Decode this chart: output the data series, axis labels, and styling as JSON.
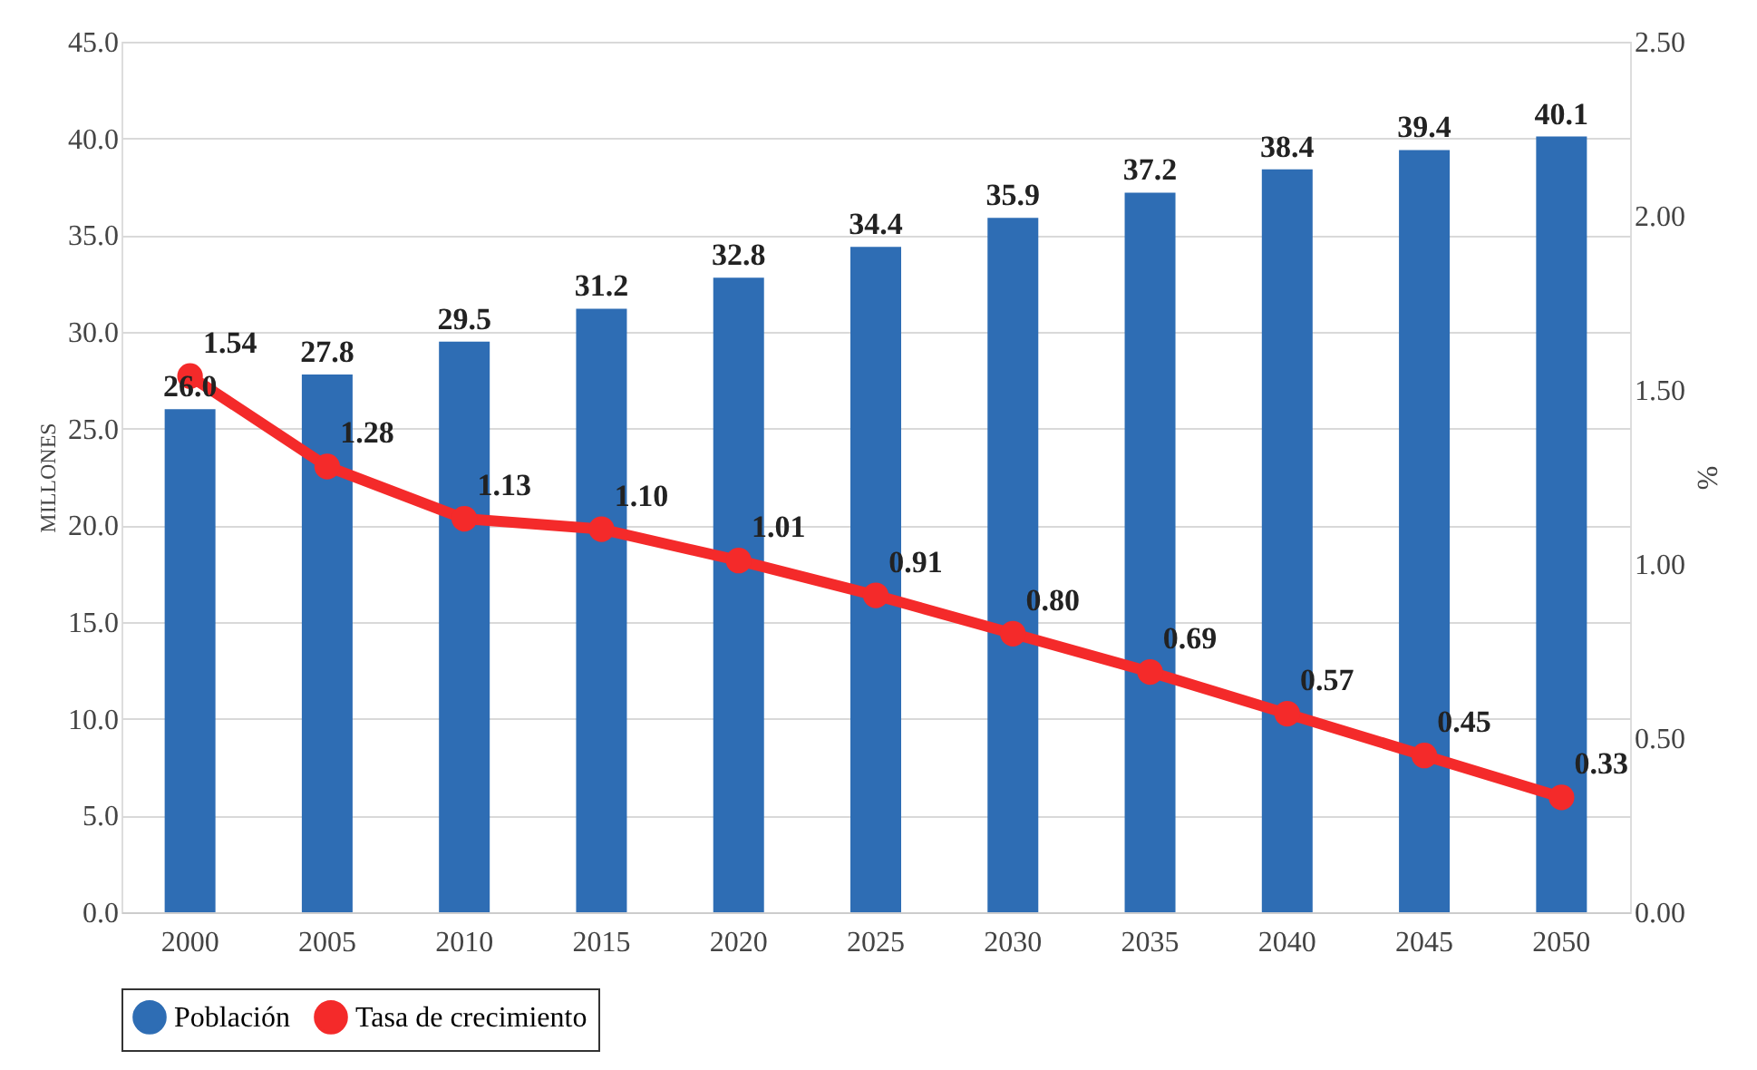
{
  "chart_data": {
    "type": "bar",
    "categories": [
      "2000",
      "2005",
      "2010",
      "2015",
      "2020",
      "2025",
      "2030",
      "2035",
      "2040",
      "2045",
      "2050"
    ],
    "ylabel": "MILLONES",
    "y2label": "%",
    "series": [
      {
        "name": "Población",
        "color": "#2e6db4",
        "values": [
          26.0,
          27.8,
          29.5,
          31.2,
          32.8,
          34.4,
          35.9,
          37.2,
          38.4,
          39.4,
          40.1
        ],
        "value_labels": [
          "26.0",
          "27.8",
          "29.5",
          "31.2",
          "32.8",
          "34.4",
          "35.9",
          "37.2",
          "38.4",
          "39.4",
          "40.1"
        ]
      },
      {
        "name": "Tasa de crecimiento",
        "type": "line",
        "axis": "y2",
        "color": "#f42a2a",
        "marker": "circle",
        "values": [
          1.54,
          1.28,
          1.13,
          1.1,
          1.01,
          0.91,
          0.8,
          0.69,
          0.57,
          0.45,
          0.33
        ],
        "value_labels": [
          "1.54",
          "1.28",
          "1.13",
          "1.10",
          "1.01",
          "0.91",
          "0.80",
          "0.69",
          "0.57",
          "0.45",
          "0.33"
        ]
      }
    ],
    "ylim": [
      0,
      45
    ],
    "yticks": [
      {
        "value": 0,
        "label": "0.0"
      },
      {
        "value": 5,
        "label": "5.0"
      },
      {
        "value": 10,
        "label": "10.0"
      },
      {
        "value": 15,
        "label": "15.0"
      },
      {
        "value": 20,
        "label": "20.0"
      },
      {
        "value": 25,
        "label": "25.0"
      },
      {
        "value": 30,
        "label": "30.0"
      },
      {
        "value": 35,
        "label": "35.0"
      },
      {
        "value": 40,
        "label": "40.0"
      },
      {
        "value": 45,
        "label": "45.0"
      }
    ],
    "y2lim": [
      0,
      2.5
    ],
    "y2ticks": [
      {
        "value": 0,
        "label": "0.00"
      },
      {
        "value": 0.5,
        "label": "0.50"
      },
      {
        "value": 1,
        "label": "1.00"
      },
      {
        "value": 1.5,
        "label": "1.50"
      },
      {
        "value": 2,
        "label": "2.00"
      },
      {
        "value": 2.5,
        "label": "2.50"
      }
    ],
    "grid": "y",
    "legend": "bottom"
  }
}
